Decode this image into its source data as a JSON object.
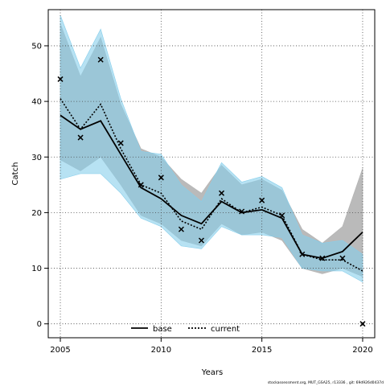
{
  "chart_data": {
    "type": "line",
    "xlabel": "Years",
    "ylabel": "Catch",
    "xlim": [
      2004.4,
      2020.6
    ],
    "ylim": [
      -2.5,
      56.5
    ],
    "x_ticks": [
      2005,
      2010,
      2015,
      2020
    ],
    "y_ticks": [
      0,
      10,
      20,
      30,
      40,
      50
    ],
    "grid": true,
    "legend_position": "bottom-center",
    "x": [
      2005,
      2006,
      2007,
      2008,
      2009,
      2010,
      2011,
      2012,
      2013,
      2014,
      2015,
      2016,
      2017,
      2018,
      2019,
      2020
    ],
    "series": [
      {
        "name": "base",
        "line_style": "solid",
        "color": "#000000",
        "band_color": "#b3b3b3",
        "values": [
          37.5,
          35.0,
          36.5,
          30.5,
          24.5,
          22.5,
          19.5,
          18.0,
          22.0,
          20.0,
          20.5,
          19.0,
          12.5,
          11.8,
          13.0,
          16.5
        ],
        "lower": [
          29.5,
          27.5,
          30.0,
          25.0,
          19.5,
          18.0,
          15.0,
          14.0,
          18.0,
          16.0,
          16.5,
          15.0,
          10.0,
          9.0,
          10.0,
          8.5
        ],
        "upper": [
          54.0,
          44.5,
          51.5,
          39.5,
          31.5,
          30.0,
          26.0,
          23.5,
          28.5,
          25.0,
          26.0,
          24.0,
          17.0,
          14.5,
          17.5,
          28.0
        ]
      },
      {
        "name": "current",
        "line_style": "dotted",
        "color": "#000000",
        "band_color": "#87ceeb",
        "values": [
          40.5,
          35.0,
          39.5,
          31.5,
          25.0,
          23.5,
          18.5,
          17.0,
          22.5,
          20.0,
          21.0,
          19.5,
          12.5,
          11.5,
          11.5,
          9.5
        ],
        "lower": [
          26.0,
          27.0,
          27.0,
          23.5,
          19.0,
          17.5,
          14.0,
          13.5,
          17.5,
          16.0,
          16.0,
          15.5,
          10.0,
          9.5,
          9.5,
          7.5
        ],
        "upper": [
          55.5,
          46.0,
          53.0,
          40.5,
          31.0,
          30.5,
          25.0,
          22.0,
          29.0,
          25.5,
          26.5,
          24.5,
          16.0,
          14.5,
          15.0,
          12.5
        ]
      }
    ],
    "observed": {
      "marker": "x",
      "x": [
        2005,
        2006,
        2007,
        2008,
        2009,
        2010,
        2011,
        2012,
        2013,
        2014,
        2015,
        2016,
        2017,
        2018,
        2019,
        2020
      ],
      "values": [
        44.0,
        33.5,
        47.5,
        32.5,
        25.0,
        26.3,
        17.0,
        15.0,
        23.5,
        20.2,
        22.2,
        19.5,
        12.5,
        11.8,
        11.8,
        0.0
      ]
    }
  },
  "footer": {
    "text": "stockassessment.org, MUT_GSA25, r13336 , git: 69d926d0437d"
  }
}
